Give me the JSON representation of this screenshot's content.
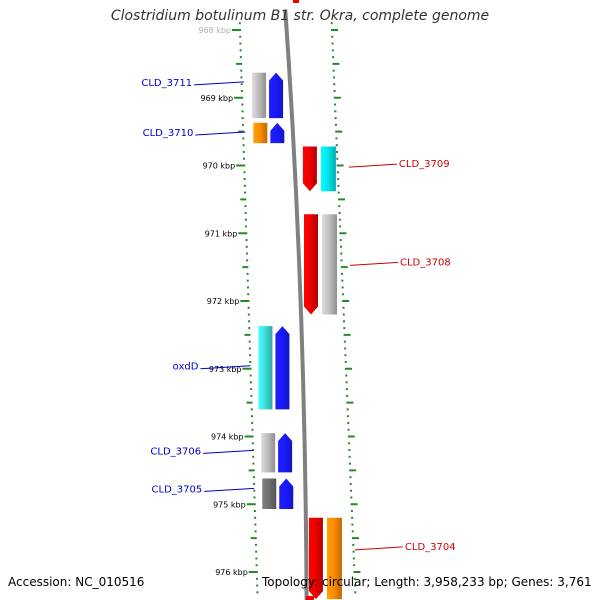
{
  "title": "Clostridium botulinum B1 str. Okra, complete genome",
  "accession": "Accession: NC_010516",
  "summary": "Topology: circular; Length: 3,958,233 bp; Genes: 3,761",
  "kbp_labels": [
    {
      "label": "968 kbp",
      "pos": 968.0
    },
    {
      "label": "969 kbp",
      "pos": 969.0
    },
    {
      "label": "970 kbp",
      "pos": 970.0
    },
    {
      "label": "971 kbp",
      "pos": 971.0
    },
    {
      "label": "972 kbp",
      "pos": 972.0
    },
    {
      "label": "973 kbp",
      "pos": 973.0
    },
    {
      "label": "974 kbp",
      "pos": 974.0
    },
    {
      "label": "975 kbp",
      "pos": 975.0
    },
    {
      "label": "976 kbp",
      "pos": 976.0
    }
  ],
  "genes_left": [
    {
      "name": "CLD_3711",
      "label_pos": 968.78,
      "features": [
        {
          "start": 968.63,
          "end": 969.3,
          "color": "#c0c0c0",
          "kind": "bar"
        },
        {
          "start": 968.63,
          "end": 969.3,
          "color": "#1a1aff",
          "kind": "arrow"
        }
      ]
    },
    {
      "name": "CLD_3710",
      "label_pos": 969.52,
      "features": [
        {
          "start": 969.37,
          "end": 969.67,
          "color": "#ff8c00",
          "kind": "bar"
        },
        {
          "start": 969.37,
          "end": 969.67,
          "color": "#1a1aff",
          "kind": "arrow"
        }
      ]
    },
    {
      "name": "oxdD",
      "label_pos": 972.97,
      "features": [
        {
          "start": 972.37,
          "end": 973.6,
          "color": "#40e0e0",
          "kind": "bar"
        },
        {
          "start": 972.37,
          "end": 973.6,
          "color": "#1a1aff",
          "kind": "arrow"
        }
      ]
    },
    {
      "name": "CLD_3706",
      "label_pos": 974.22,
      "features": [
        {
          "start": 973.95,
          "end": 974.53,
          "color": "#c0c0c0",
          "kind": "bar"
        },
        {
          "start": 973.95,
          "end": 974.53,
          "color": "#1a1aff",
          "kind": "arrow"
        }
      ]
    },
    {
      "name": "CLD_3705",
      "label_pos": 974.78,
      "features": [
        {
          "start": 974.62,
          "end": 975.07,
          "color": "#707070",
          "kind": "bar"
        },
        {
          "start": 974.62,
          "end": 975.07,
          "color": "#1a1aff",
          "kind": "arrow"
        }
      ]
    }
  ],
  "genes_right": [
    {
      "name": "CLD_3709",
      "label_pos": 969.98,
      "features": [
        {
          "start": 969.72,
          "end": 970.38,
          "color": "#ee0000",
          "kind": "arrow"
        },
        {
          "start": 969.72,
          "end": 970.38,
          "color": "#00e5ee",
          "kind": "bar"
        }
      ]
    },
    {
      "name": "CLD_3708",
      "label_pos": 971.43,
      "features": [
        {
          "start": 970.72,
          "end": 972.2,
          "color": "#ee0000",
          "kind": "arrow"
        },
        {
          "start": 970.72,
          "end": 972.2,
          "color": "#c0c0c0",
          "kind": "bar"
        }
      ]
    },
    {
      "name": "CLD_3704",
      "label_pos": 975.63,
      "features": [
        {
          "start": 975.2,
          "end": 976.4,
          "color": "#ee0000",
          "kind": "arrow"
        },
        {
          "start": 975.2,
          "end": 976.4,
          "color": "#ff8c00",
          "kind": "bar"
        }
      ]
    }
  ],
  "colors": {
    "left_label": "#0000cc",
    "right_label": "#cc0000",
    "ticks": "#228b22",
    "backbone": "#808080"
  }
}
